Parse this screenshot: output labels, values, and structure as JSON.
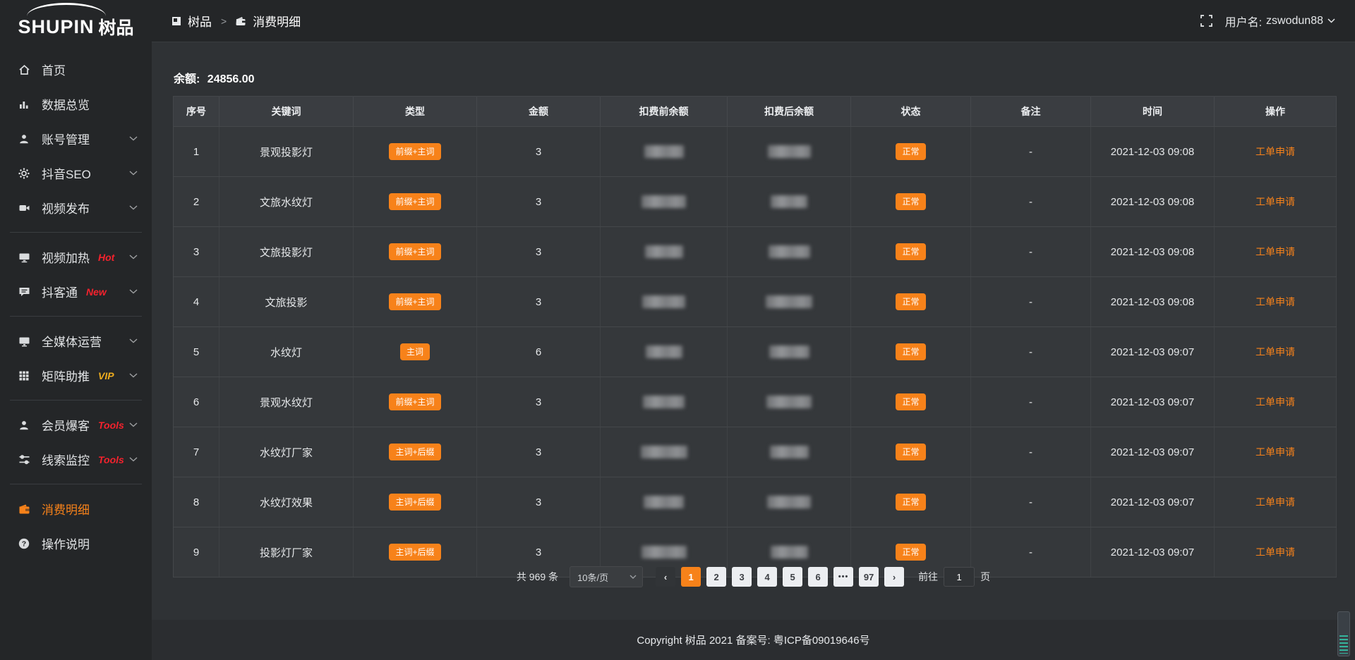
{
  "app": {
    "logo": "SHUPIN",
    "logo_cn": "树品"
  },
  "topbar": {
    "breadcrumb": [
      {
        "label": "树品"
      },
      {
        "label": "消费明细"
      }
    ],
    "separator": ">",
    "username_label": "用户名:",
    "username": "zswodun88"
  },
  "sidebar": {
    "items": [
      {
        "label": "首页"
      },
      {
        "label": "数据总览"
      },
      {
        "label": "账号管理",
        "arrow": true
      },
      {
        "label": "抖音SEO",
        "arrow": true
      },
      {
        "label": "视频发布",
        "arrow": true
      },
      {
        "label": "视频加热",
        "tag": "Hot",
        "tag_color": "#f5222d",
        "arrow": true
      },
      {
        "label": "抖客通",
        "tag": "New",
        "tag_color": "#f5222d",
        "arrow": true
      },
      {
        "label": "全媒体运营",
        "arrow": true
      },
      {
        "label": "矩阵助推",
        "tag": "VIP",
        "tag_color": "#efad1e",
        "arrow": true
      },
      {
        "label": "会员爆客",
        "tag": "Tools",
        "tag_color": "#f5222d",
        "arrow": true
      },
      {
        "label": "线索监控",
        "tag": "Tools",
        "tag_color": "#f5222d",
        "arrow": true
      },
      {
        "label": "消费明细",
        "active": true
      },
      {
        "label": "操作说明"
      }
    ]
  },
  "main": {
    "balance_label": "余额:",
    "balance_value": "24856.00"
  },
  "table": {
    "columns": [
      "序号",
      "关键词",
      "类型",
      "金额",
      "扣费前余额",
      "扣费后余额",
      "状态",
      "备注",
      "时间",
      "操作"
    ],
    "masked_columns": [
      "扣费前余额",
      "扣费后余额"
    ],
    "rows": [
      {
        "index": "1",
        "keyword": "景观投影灯",
        "type": "前缀+主词",
        "amount": "3",
        "status": "正常",
        "note": "-",
        "time": "2021-12-03 09:08",
        "action": "工单申请"
      },
      {
        "index": "2",
        "keyword": "文旅水纹灯",
        "type": "前缀+主词",
        "amount": "3",
        "status": "正常",
        "note": "-",
        "time": "2021-12-03 09:08",
        "action": "工单申请"
      },
      {
        "index": "3",
        "keyword": "文旅投影灯",
        "type": "前缀+主词",
        "amount": "3",
        "status": "正常",
        "note": "-",
        "time": "2021-12-03 09:08",
        "action": "工单申请"
      },
      {
        "index": "4",
        "keyword": "文旅投影",
        "type": "前缀+主词",
        "amount": "3",
        "status": "正常",
        "note": "-",
        "time": "2021-12-03 09:08",
        "action": "工单申请"
      },
      {
        "index": "5",
        "keyword": "水纹灯",
        "type": "主词",
        "amount": "6",
        "status": "正常",
        "note": "-",
        "time": "2021-12-03 09:07",
        "action": "工单申请"
      },
      {
        "index": "6",
        "keyword": "景观水纹灯",
        "type": "前缀+主词",
        "amount": "3",
        "status": "正常",
        "note": "-",
        "time": "2021-12-03 09:07",
        "action": "工单申请"
      },
      {
        "index": "7",
        "keyword": "水纹灯厂家",
        "type": "主词+后缀",
        "amount": "3",
        "status": "正常",
        "note": "-",
        "time": "2021-12-03 09:07",
        "action": "工单申请"
      },
      {
        "index": "8",
        "keyword": "水纹灯效果",
        "type": "主词+后缀",
        "amount": "3",
        "status": "正常",
        "note": "-",
        "time": "2021-12-03 09:07",
        "action": "工单申请"
      },
      {
        "index": "9",
        "keyword": "投影灯厂家",
        "type": "主词+后缀",
        "amount": "3",
        "status": "正常",
        "note": "-",
        "time": "2021-12-03 09:07",
        "action": "工单申请"
      }
    ]
  },
  "pagination": {
    "total": "共 969 条",
    "page_size": "10条/页",
    "prev": "‹",
    "next": "›",
    "pages": [
      "1",
      "2",
      "3",
      "4",
      "5",
      "6",
      "•••",
      "97"
    ],
    "active_page": "1",
    "goto_label": "前往",
    "goto_value": "1",
    "goto_suffix": "页"
  },
  "footer": {
    "copyright": "Copyright 树品 2021 备案号: 粤ICP备09019646号"
  },
  "colors": {
    "accent": "#f7821a",
    "danger": "#f5222d",
    "vip": "#efad1e"
  }
}
